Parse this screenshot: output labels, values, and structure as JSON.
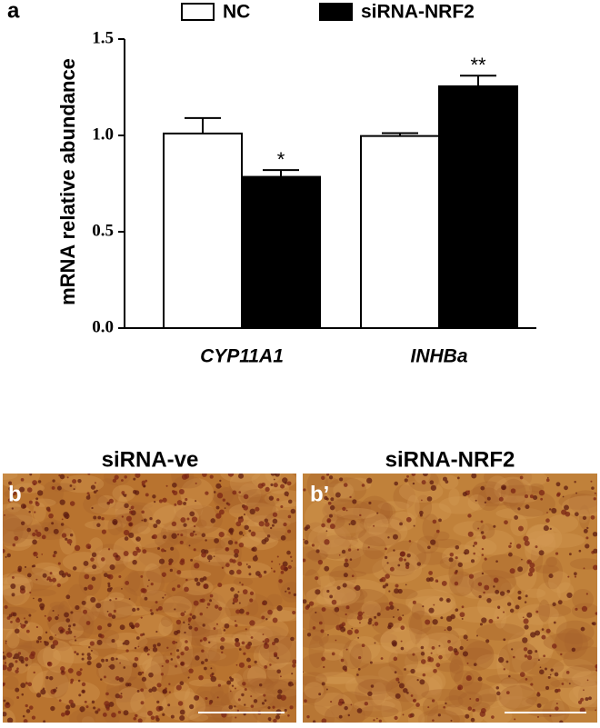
{
  "chart_data": {
    "type": "bar",
    "panel_label": "a",
    "ylabel": "mRNA relative abundance",
    "categories": [
      "CYP11A1",
      "INHBa"
    ],
    "series": [
      {
        "name": "NC",
        "color": "#ffffff",
        "values": [
          1.01,
          0.997
        ],
        "errors": [
          0.08,
          0.015
        ]
      },
      {
        "name": "siRNA-NRF2",
        "color": "#000000",
        "values": [
          0.785,
          1.255
        ],
        "errors": [
          0.035,
          0.055
        ],
        "significance": [
          "*",
          "**"
        ]
      }
    ],
    "ylim": [
      0,
      1.5
    ],
    "yticks": [
      {
        "value": 0,
        "label": "0.0"
      },
      0.5,
      {
        "value": 1,
        "label": "1.0"
      },
      1.5
    ]
  },
  "panels": [
    {
      "label": "b",
      "title": "siRNA-ve"
    },
    {
      "label": "b’",
      "title": "siRNA-NRF2"
    }
  ]
}
